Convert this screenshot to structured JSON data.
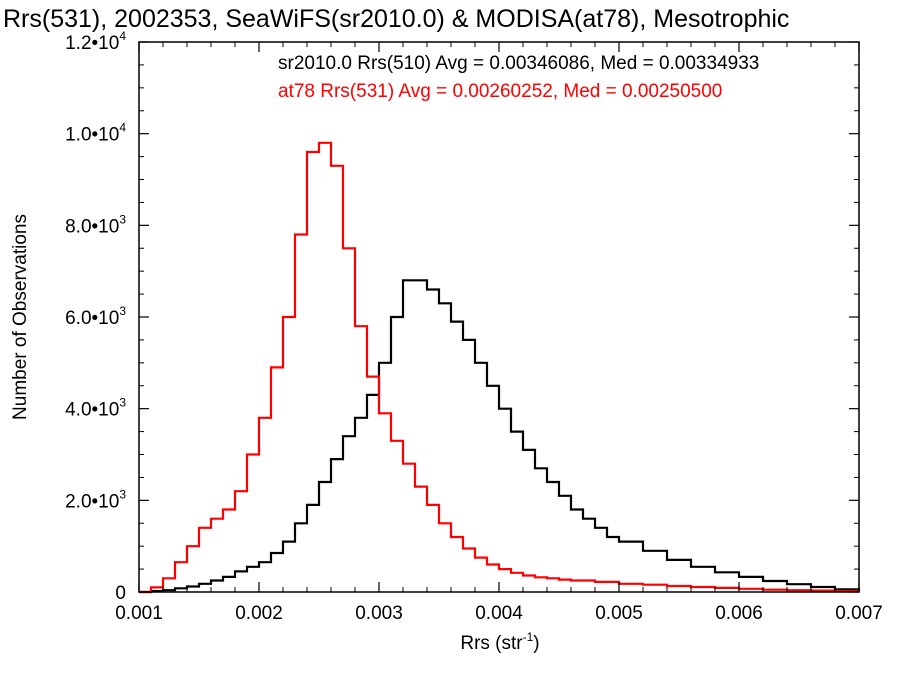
{
  "chart_data": {
    "type": "line",
    "title": "Rrs(531), 2002353, SeaWiFS(sr2010.0) & MODISA(at78), Mesotrophic",
    "xlabel": "Rrs (str",
    "xlabel_exponent": "-1",
    "xlabel_suffix": ")",
    "ylabel": "Number of Observations",
    "xlim": [
      0.001,
      0.007
    ],
    "ylim": [
      0,
      12000
    ],
    "x_ticks": [
      "0.001",
      "0.002",
      "0.003",
      "0.004",
      "0.005",
      "0.006",
      "0.007"
    ],
    "y_ticks": [
      {
        "value": 0,
        "mantissa": "0",
        "exponent": ""
      },
      {
        "value": 2000,
        "mantissa": "2.0•10",
        "exponent": "3"
      },
      {
        "value": 4000,
        "mantissa": "4.0•10",
        "exponent": "3"
      },
      {
        "value": 6000,
        "mantissa": "6.0•10",
        "exponent": "3"
      },
      {
        "value": 8000,
        "mantissa": "8.0•10",
        "exponent": "3"
      },
      {
        "value": 10000,
        "mantissa": "1.0•10",
        "exponent": "4"
      },
      {
        "value": 12000,
        "mantissa": "1.2•10",
        "exponent": "4"
      }
    ],
    "grid": false,
    "step_style": "histogram",
    "annotations": [
      {
        "text": "sr2010.0 Rrs(510) Avg = 0.00346086, Med = 0.00334933",
        "color": "#000000"
      },
      {
        "text": "at78 Rrs(531) Avg = 0.00260252, Med = 0.00250500",
        "color": "#ff0000"
      }
    ],
    "series": [
      {
        "color": "#000000",
        "x": [
          0.001,
          0.0011,
          0.0012,
          0.0013,
          0.0014,
          0.0015,
          0.0016,
          0.0017,
          0.0018,
          0.0019,
          0.002,
          0.0021,
          0.0022,
          0.0023,
          0.0024,
          0.0025,
          0.0026,
          0.0027,
          0.0028,
          0.0029,
          0.003,
          0.0031,
          0.0032,
          0.0033,
          0.0034,
          0.0035,
          0.0036,
          0.0037,
          0.0038,
          0.0039,
          0.004,
          0.0041,
          0.0042,
          0.0043,
          0.0044,
          0.0045,
          0.0046,
          0.0047,
          0.0048,
          0.0049,
          0.005,
          0.0052,
          0.0054,
          0.0056,
          0.0058,
          0.006,
          0.0062,
          0.0064,
          0.0066,
          0.0068,
          0.007
        ],
        "values": [
          0,
          20,
          40,
          80,
          120,
          180,
          250,
          330,
          450,
          550,
          650,
          850,
          1100,
          1500,
          1900,
          2400,
          2900,
          3400,
          3800,
          4300,
          5000,
          6000,
          6800,
          6800,
          6600,
          6300,
          5900,
          5500,
          5000,
          4500,
          4000,
          3500,
          3100,
          2700,
          2400,
          2100,
          1800,
          1600,
          1400,
          1200,
          1100,
          900,
          700,
          550,
          430,
          330,
          240,
          170,
          110,
          60,
          30
        ]
      },
      {
        "color": "#ff0000",
        "x": [
          0.001,
          0.0011,
          0.0012,
          0.0013,
          0.0014,
          0.0015,
          0.0016,
          0.0017,
          0.0018,
          0.0019,
          0.002,
          0.0021,
          0.0022,
          0.0023,
          0.0024,
          0.0025,
          0.0026,
          0.0027,
          0.0028,
          0.0029,
          0.003,
          0.0031,
          0.0032,
          0.0033,
          0.0034,
          0.0035,
          0.0036,
          0.0037,
          0.0038,
          0.0039,
          0.004,
          0.0041,
          0.0042,
          0.0043,
          0.0044,
          0.0045,
          0.0046,
          0.0048,
          0.005,
          0.0052,
          0.0054,
          0.0056,
          0.0058,
          0.006,
          0.0062,
          0.0064,
          0.0066,
          0.0068,
          0.007
        ],
        "values": [
          0,
          100,
          300,
          650,
          1000,
          1400,
          1600,
          1800,
          2200,
          3000,
          3800,
          4900,
          6000,
          7800,
          9600,
          9800,
          9300,
          7500,
          5800,
          4700,
          3900,
          3300,
          2800,
          2300,
          1900,
          1500,
          1200,
          950,
          750,
          600,
          500,
          420,
          360,
          320,
          300,
          270,
          250,
          220,
          180,
          160,
          130,
          110,
          90,
          70,
          50,
          40,
          30,
          20,
          10
        ]
      }
    ]
  }
}
